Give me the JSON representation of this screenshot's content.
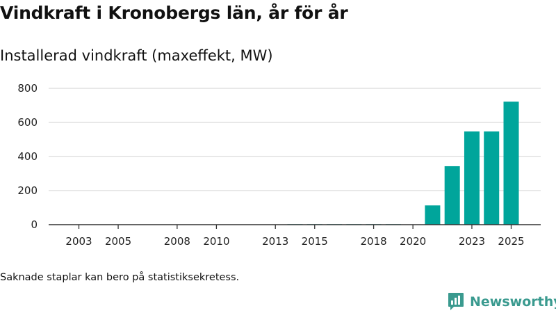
{
  "title": "Vindkraft i Kronobergs län, år för år",
  "subtitle": "Installerad vindkraft (maxeffekt, MW)",
  "note": "Saknade staplar kan bero på statistiksekretess.",
  "brand": {
    "name": "Newsworthy",
    "color": "#3a9a8f"
  },
  "colors": {
    "bar": "#00a59b",
    "grid": "#d9d9d9",
    "axis": "#333333"
  },
  "chart_data": {
    "type": "bar",
    "title": "Installerad vindkraft (maxeffekt, MW)",
    "xlabel": "",
    "ylabel": "",
    "xlim": [
      2002,
      2026
    ],
    "ylim": [
      0,
      800
    ],
    "yticks": [
      0,
      200,
      400,
      600,
      800
    ],
    "xticks": [
      "2003",
      "2005",
      "2008",
      "2010",
      "2013",
      "2015",
      "2018",
      "2020",
      "2023",
      "2025"
    ],
    "categories": [
      "2014",
      "2015",
      "2016",
      "2017",
      "2018",
      "2019",
      "2021",
      "2022",
      "2023",
      "2024",
      "2025"
    ],
    "values": [
      3,
      3,
      3,
      3,
      3,
      3,
      113,
      343,
      547,
      547,
      722
    ],
    "grid": true,
    "legend": "none"
  }
}
